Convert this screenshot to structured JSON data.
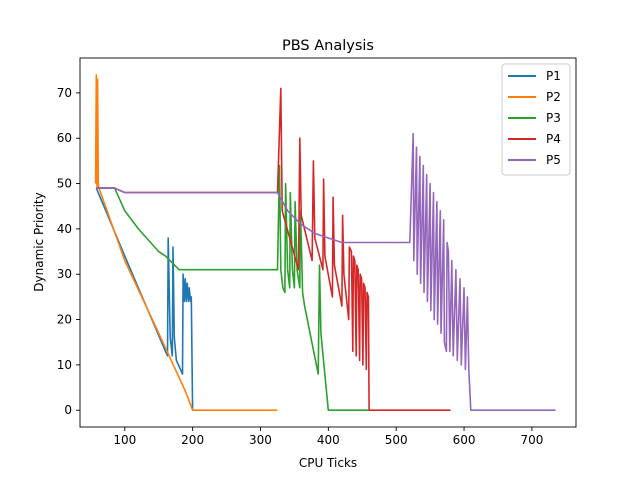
{
  "chart_data": {
    "type": "line",
    "title": "PBS Analysis",
    "xlabel": "CPU Ticks",
    "ylabel": "Dynamic Priority",
    "xlim": [
      34,
      765
    ],
    "ylim": [
      -3.7,
      77.7
    ],
    "xticks": [
      100,
      200,
      300,
      400,
      500,
      600,
      700
    ],
    "yticks": [
      0,
      10,
      20,
      30,
      40,
      50,
      60,
      70
    ],
    "grid": false,
    "legend_position": "top-right",
    "series": [
      {
        "name": "P1",
        "color": "#1f77b4",
        "points": [
          [
            58,
            49
          ],
          [
            100,
            34
          ],
          [
            160,
            13
          ],
          [
            163,
            12
          ],
          [
            164,
            38
          ],
          [
            167,
            16
          ],
          [
            170,
            12
          ],
          [
            171,
            36
          ],
          [
            173,
            16
          ],
          [
            176,
            11
          ],
          [
            185,
            8
          ],
          [
            186,
            30
          ],
          [
            188,
            24
          ],
          [
            189,
            29
          ],
          [
            191,
            24
          ],
          [
            192,
            28
          ],
          [
            194,
            24
          ],
          [
            195,
            27
          ],
          [
            197,
            24
          ],
          [
            198,
            25
          ],
          [
            200,
            0
          ]
        ]
      },
      {
        "name": "P2",
        "color": "#ff7f0e",
        "points": [
          [
            57,
            50
          ],
          [
            58,
            74
          ],
          [
            59,
            49
          ],
          [
            60,
            73
          ],
          [
            61,
            50
          ],
          [
            62,
            49
          ],
          [
            100,
            33
          ],
          [
            150,
            17
          ],
          [
            190,
            4
          ],
          [
            200,
            0
          ],
          [
            325,
            0
          ]
        ]
      },
      {
        "name": "P3",
        "color": "#2ca02c",
        "points": [
          [
            58,
            49
          ],
          [
            85,
            49
          ],
          [
            100,
            44
          ],
          [
            120,
            40
          ],
          [
            150,
            35
          ],
          [
            160,
            34
          ],
          [
            180,
            31
          ],
          [
            200,
            31
          ],
          [
            325,
            31
          ],
          [
            328,
            54
          ],
          [
            330,
            31
          ],
          [
            333,
            27
          ],
          [
            336,
            26
          ],
          [
            337,
            50
          ],
          [
            340,
            31
          ],
          [
            343,
            27
          ],
          [
            344,
            48
          ],
          [
            347,
            31
          ],
          [
            350,
            27
          ],
          [
            351,
            46
          ],
          [
            354,
            31
          ],
          [
            358,
            27
          ],
          [
            359,
            44
          ],
          [
            362,
            26
          ],
          [
            365,
            23
          ],
          [
            385,
            8
          ],
          [
            387,
            32
          ],
          [
            389,
            17
          ],
          [
            400,
            0
          ],
          [
            460,
            0
          ]
        ]
      },
      {
        "name": "P4",
        "color": "#d62728",
        "points": [
          [
            58,
            49
          ],
          [
            85,
            49
          ],
          [
            100,
            48
          ],
          [
            325,
            48
          ],
          [
            330,
            71
          ],
          [
            332,
            44
          ],
          [
            356,
            31
          ],
          [
            358,
            60
          ],
          [
            360,
            43
          ],
          [
            376,
            33
          ],
          [
            378,
            55
          ],
          [
            380,
            38
          ],
          [
            392,
            31
          ],
          [
            393,
            51
          ],
          [
            395,
            34
          ],
          [
            406,
            25
          ],
          [
            407,
            47
          ],
          [
            409,
            32
          ],
          [
            420,
            23
          ],
          [
            421,
            43
          ],
          [
            423,
            30
          ],
          [
            430,
            20
          ],
          [
            431,
            36
          ],
          [
            434,
            35
          ],
          [
            436,
            13
          ],
          [
            437,
            34
          ],
          [
            439,
            33
          ],
          [
            441,
            12
          ],
          [
            442,
            32
          ],
          [
            444,
            31
          ],
          [
            446,
            11
          ],
          [
            447,
            30
          ],
          [
            449,
            29
          ],
          [
            451,
            10
          ],
          [
            452,
            28
          ],
          [
            454,
            27
          ],
          [
            456,
            9
          ],
          [
            457,
            26
          ],
          [
            459,
            25
          ],
          [
            460,
            0
          ],
          [
            580,
            0
          ]
        ]
      },
      {
        "name": "P5",
        "color": "#9467bd",
        "points": [
          [
            58,
            49
          ],
          [
            85,
            49
          ],
          [
            100,
            48
          ],
          [
            325,
            48
          ],
          [
            340,
            44
          ],
          [
            360,
            41
          ],
          [
            380,
            39
          ],
          [
            400,
            38
          ],
          [
            420,
            37
          ],
          [
            520,
            37
          ],
          [
            525,
            61
          ],
          [
            526,
            33
          ],
          [
            530,
            58
          ],
          [
            531,
            30
          ],
          [
            535,
            56
          ],
          [
            536,
            28
          ],
          [
            540,
            54
          ],
          [
            541,
            26
          ],
          [
            545,
            52
          ],
          [
            546,
            24
          ],
          [
            550,
            50
          ],
          [
            551,
            22
          ],
          [
            555,
            48
          ],
          [
            556,
            20
          ],
          [
            560,
            46
          ],
          [
            561,
            19
          ],
          [
            565,
            44
          ],
          [
            566,
            17
          ],
          [
            570,
            42
          ],
          [
            571,
            15
          ],
          [
            574,
            13
          ],
          [
            575,
            37
          ],
          [
            577,
            35
          ],
          [
            579,
            13
          ],
          [
            582,
            33
          ],
          [
            584,
            12
          ],
          [
            588,
            31
          ],
          [
            590,
            11
          ],
          [
            594,
            29
          ],
          [
            596,
            10
          ],
          [
            600,
            27
          ],
          [
            602,
            9
          ],
          [
            605,
            25
          ],
          [
            607,
            9
          ],
          [
            610,
            0
          ],
          [
            735,
            0
          ]
        ]
      }
    ]
  }
}
